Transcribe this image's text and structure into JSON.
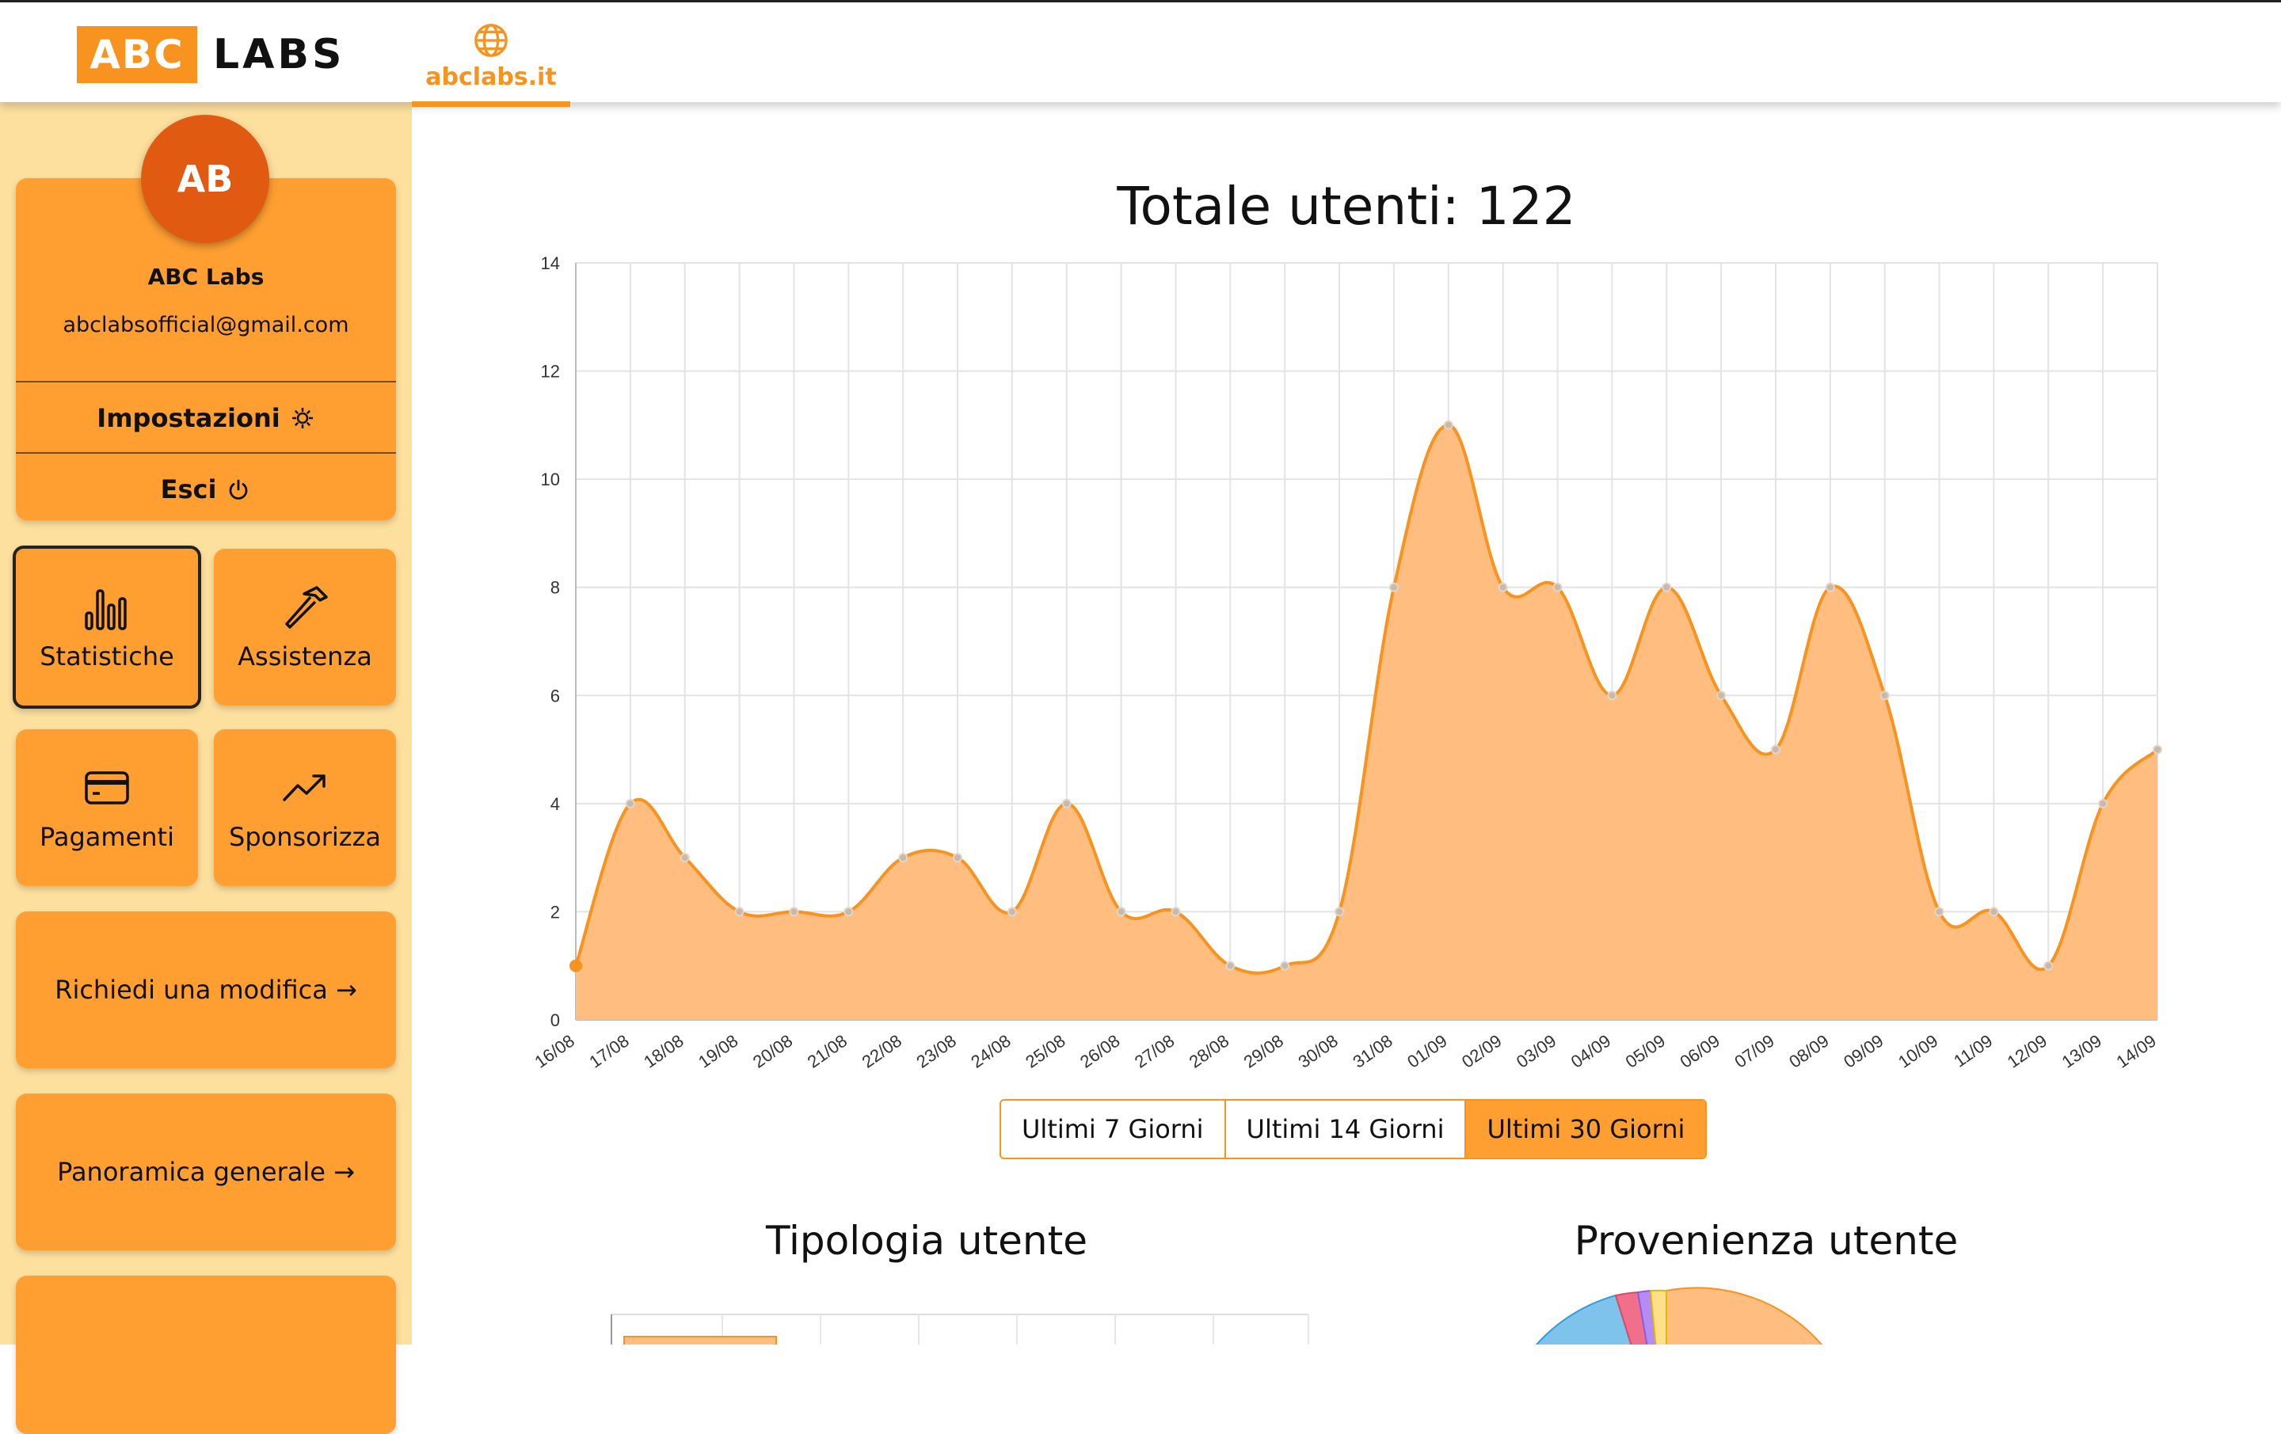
{
  "header": {
    "logo_left": "ABC",
    "logo_right": "LABS",
    "site_tab": "abclabs.it",
    "site_icon": "globe-icon"
  },
  "profile": {
    "initials": "AB",
    "name": "ABC Labs",
    "email": "abclabsofficial@gmail.com",
    "settings_label": "Impostazioni",
    "settings_icon": "gear-icon",
    "logout_label": "Esci",
    "logout_icon": "power-icon"
  },
  "sidebar": {
    "tiles": [
      {
        "label": "Statistiche",
        "icon": "bar-chart-icon",
        "active": true
      },
      {
        "label": "Assistenza",
        "icon": "hammer-icon",
        "active": false
      },
      {
        "label": "Pagamenti",
        "icon": "credit-card-icon",
        "active": false
      },
      {
        "label": "Sponsorizza",
        "icon": "trending-up-icon",
        "active": false
      }
    ],
    "request_change": "Richiedi una modifica →",
    "overview": "Panoramica generale →"
  },
  "main": {
    "title": "Totale utenti: 122",
    "range_buttons": [
      "Ultimi 7 Giorni",
      "Ultimi 14 Giorni",
      "Ultimi 30 Giorni"
    ],
    "active_range": 2,
    "user_type_title": "Tipologia utente",
    "user_origin_title": "Provenienza utente"
  },
  "colors": {
    "accent": "#f7931e",
    "card": "#ff9f31",
    "sidebar_bg": "#fde09e",
    "area_fill": "#ffbd80",
    "line": "#f7931e",
    "avatar": "#e15a12"
  },
  "chart_data": {
    "type": "area",
    "title": "Totale utenti: 122",
    "x": [
      "16/08",
      "17/08",
      "18/08",
      "19/08",
      "20/08",
      "21/08",
      "22/08",
      "23/08",
      "24/08",
      "25/08",
      "26/08",
      "27/08",
      "28/08",
      "29/08",
      "30/08",
      "31/08",
      "01/09",
      "02/09",
      "03/09",
      "04/09",
      "05/09",
      "06/09",
      "07/09",
      "08/09",
      "09/09",
      "10/09",
      "11/09",
      "12/09",
      "13/09",
      "14/09"
    ],
    "values": [
      1,
      4,
      3,
      2,
      2,
      2,
      3,
      3,
      2,
      4,
      2,
      2,
      1,
      1,
      2,
      8,
      11,
      8,
      8,
      6,
      8,
      6,
      5,
      8,
      6,
      2,
      2,
      1,
      4,
      5
    ],
    "ylim": [
      0,
      14
    ],
    "yticks": [
      0,
      2,
      4,
      6,
      8,
      10,
      12,
      14
    ],
    "grid": true,
    "xlabel": "",
    "ylabel": ""
  }
}
